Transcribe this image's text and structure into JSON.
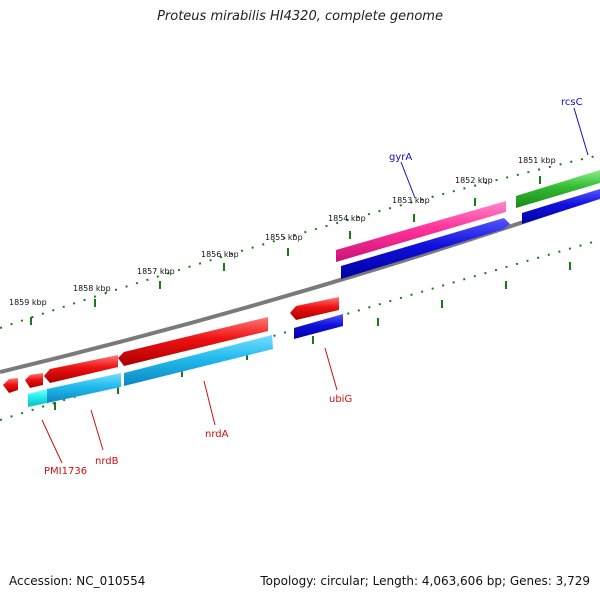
{
  "title": "Proteus mirabilis HI4320, complete genome",
  "footer": {
    "accession": "Accession: NC_010554",
    "topology": "Topology: circular; Length: 4,063,606 bp; Genes: 3,729"
  },
  "scale_labels": [
    "1851 kbp",
    "1852 kbp",
    "1853 kbp",
    "1854 kbp",
    "1855 kbp",
    "1856 kbp",
    "1857 kbp",
    "1858 kbp",
    "1859 kbp"
  ],
  "genes": [
    {
      "name": "rcsC",
      "strand": "forward"
    },
    {
      "name": "gyrA",
      "strand": "forward"
    },
    {
      "name": "ubiG",
      "strand": "reverse"
    },
    {
      "name": "nrdA",
      "strand": "reverse"
    },
    {
      "name": "nrdB",
      "strand": "reverse"
    },
    {
      "name": "PMI1736",
      "strand": "reverse"
    }
  ],
  "colors": {
    "backbone": "#808080",
    "tick": "#1a7a1a",
    "forward_label": "#1010c0",
    "reverse_label": "#cc1010",
    "cds_forward": "#ff3399",
    "cds_reverse": "#ee1111",
    "cds_green": "#33bb33",
    "orf_blue": "#1010dd",
    "orf_cyan": "#22bbee"
  }
}
